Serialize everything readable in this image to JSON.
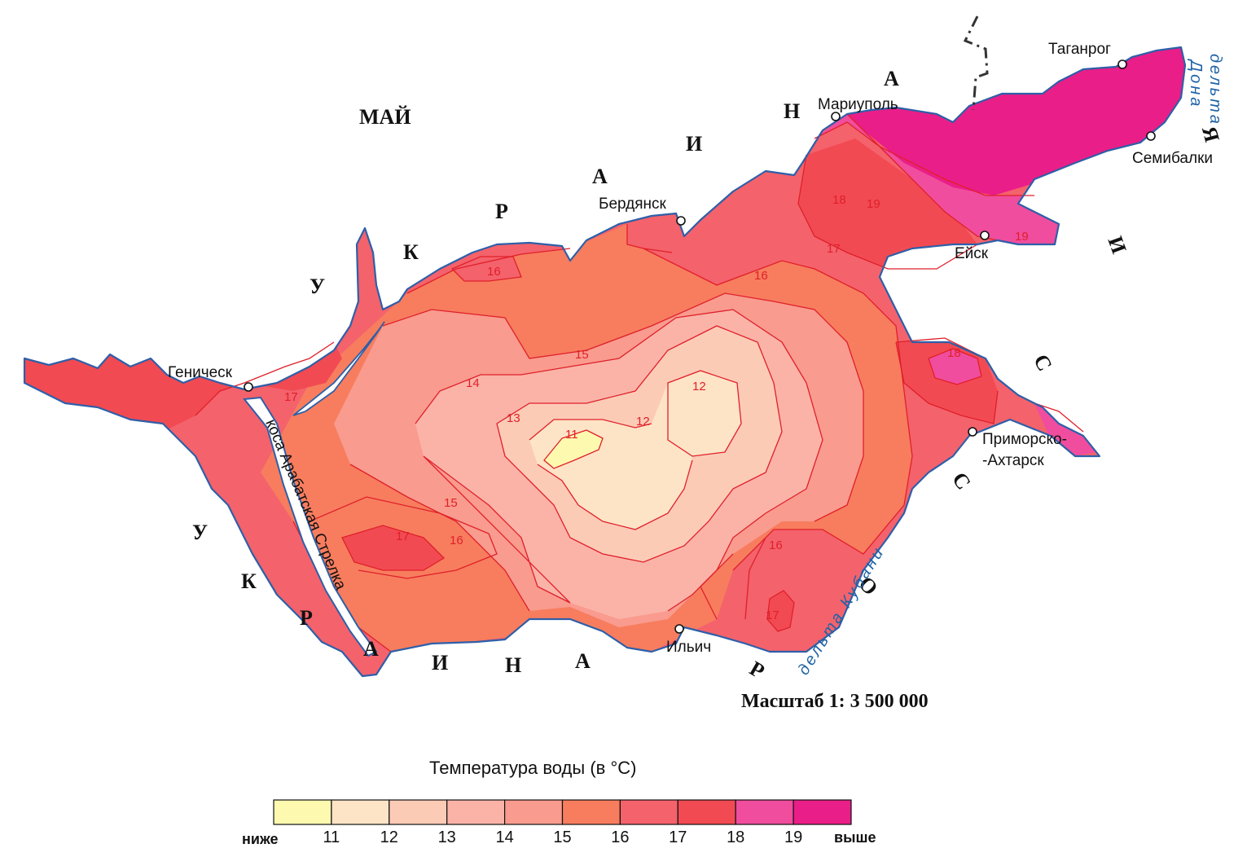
{
  "country_labels": {
    "ukraine_top": [
      "У",
      "К",
      "Р",
      "А",
      "И",
      "Н",
      "А"
    ],
    "ukraine_bottom": [
      "У",
      "К",
      "Р",
      "А",
      "И",
      "Н",
      "А"
    ],
    "russia_right": [
      "Я",
      "И",
      "С",
      "С",
      "О",
      "Р"
    ],
    "maj": "МАЙ"
  },
  "cities": {
    "taganrog": "Таганрог",
    "mariupol": "Мариуполь",
    "semibalki": "Семибалки",
    "berdyansk": "Бердянск",
    "yeisk": "Ейск",
    "genichesk": "Геническ",
    "primorsko_1": "Приморско-",
    "primorsko_2": "-Ахтарск",
    "ilyich": "Ильич"
  },
  "deltas": {
    "don_1": "дельта",
    "don_2": "Дона",
    "kuban": "дельта Кубани"
  },
  "spit": "коса Арабатская Стрелка",
  "scale": "Масштаб 1: 3 500 000",
  "isotherm_labels": {
    "l11": "11",
    "l12a": "12",
    "l12b": "12",
    "l13": "13",
    "l14": "14",
    "l15a": "15",
    "l15b": "15",
    "l16a": "16",
    "l16b": "16",
    "l16c": "16",
    "l16d": "16",
    "l17a": "17",
    "l17b": "17",
    "l17c": "17",
    "l17d": "17",
    "l18a": "18",
    "l18b": "18",
    "l19a": "19",
    "l19b": "19"
  },
  "legend": {
    "title": "Температура воды (в °C)",
    "low": "ниже",
    "high": "выше",
    "ticks": [
      "11",
      "12",
      "13",
      "14",
      "15",
      "16",
      "17",
      "18",
      "19"
    ],
    "colors": [
      "#fdfab0",
      "#fde4c6",
      "#fccbb6",
      "#fbb3a8",
      "#f99b8e",
      "#f77d5e",
      "#f4626c",
      "#f24a52",
      "#f04d9e",
      "#ea1e88"
    ]
  }
}
